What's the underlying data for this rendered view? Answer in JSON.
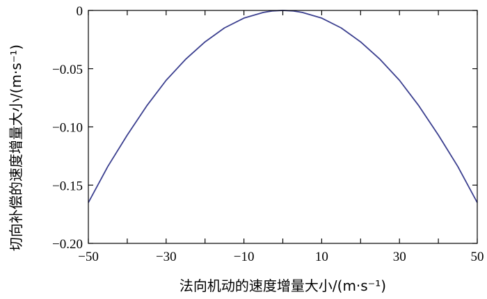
{
  "chart_data": {
    "type": "line",
    "xlabel": "法向机动的速度增量大小/(m·s⁻¹)",
    "ylabel": "切向补偿的速度增量大小/(m·s⁻¹)",
    "xlim": [
      -50,
      50
    ],
    "ylim": [
      -0.2,
      0
    ],
    "x_ticks": [
      -50,
      -30,
      -10,
      10,
      30,
      50
    ],
    "x_tick_labels": [
      "−50",
      "−30",
      "−10",
      "10",
      "30",
      "50"
    ],
    "x_minor_ticks": [
      -40,
      -20,
      0,
      20,
      40
    ],
    "y_ticks": [
      0,
      -0.05,
      -0.1,
      -0.15,
      -0.2
    ],
    "y_tick_labels": [
      "0",
      "−0.05",
      "−0.10",
      "−0.15",
      "−0.20"
    ],
    "grid": false,
    "series": [
      {
        "color": "#3b3f8f",
        "x": [
          -50,
          -45,
          -40,
          -35,
          -30,
          -25,
          -20,
          -15,
          -10,
          -5,
          -2.5,
          0,
          2.5,
          5,
          10,
          15,
          20,
          25,
          30,
          35,
          40,
          45,
          50
        ],
        "y": [
          -0.165,
          -0.134,
          -0.107,
          -0.082,
          -0.06,
          -0.042,
          -0.027,
          -0.015,
          -0.0066,
          -0.0017,
          -0.0004,
          0,
          -0.0004,
          -0.0017,
          -0.0066,
          -0.015,
          -0.027,
          -0.042,
          -0.06,
          -0.082,
          -0.107,
          -0.134,
          -0.165
        ]
      }
    ]
  }
}
